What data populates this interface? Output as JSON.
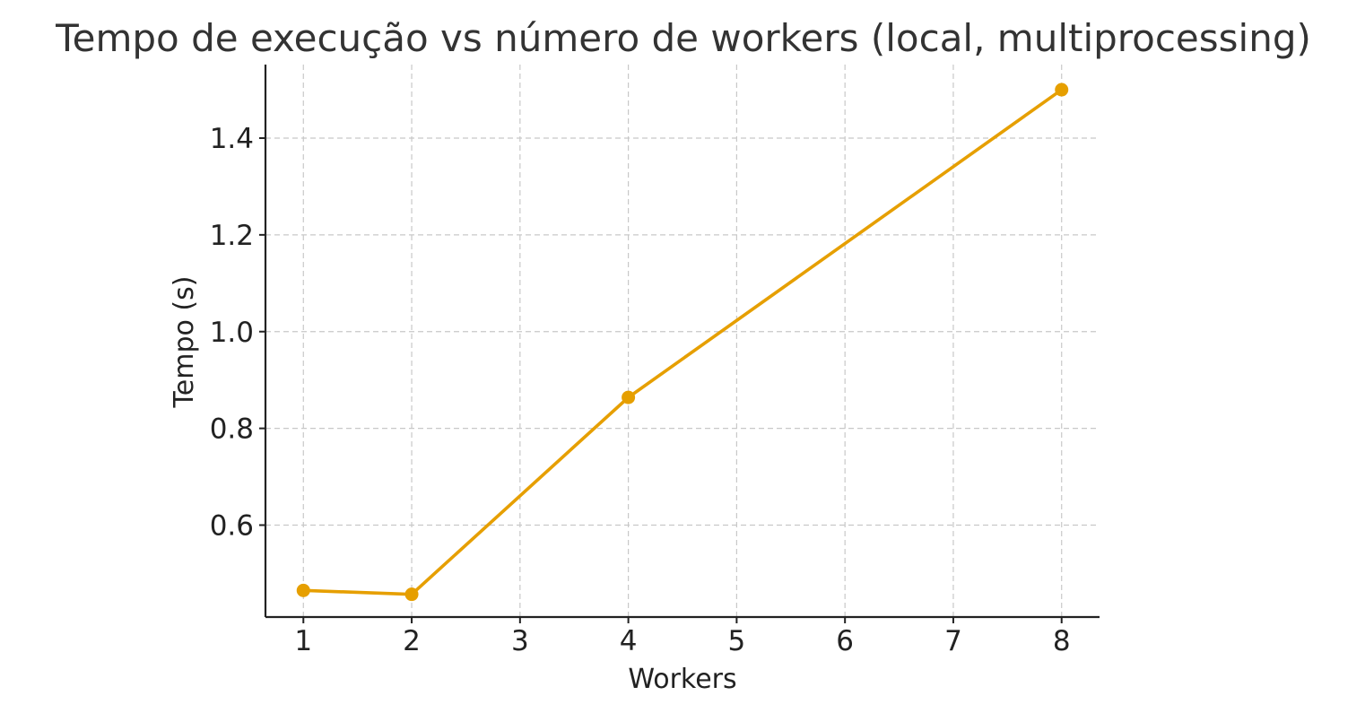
{
  "chart_data": {
    "type": "line",
    "title": "Tempo de execução vs número de workers (local, multiprocessing)",
    "xlabel": "Workers",
    "ylabel": "Tempo (s)",
    "x": [
      1,
      2,
      4,
      8
    ],
    "series": [
      {
        "values": [
          0.465,
          0.457,
          0.864,
          1.5
        ],
        "color": "#E69F00"
      }
    ],
    "xlim": [
      0.65,
      8.35
    ],
    "ylim": [
      0.41,
      1.552
    ],
    "xticks": [
      1,
      2,
      3,
      4,
      5,
      6,
      7,
      8
    ],
    "xtick_labels": [
      "1",
      "2",
      "3",
      "4",
      "5",
      "6",
      "7",
      "8"
    ],
    "yticks": [
      0.6,
      0.8,
      1.0,
      1.2,
      1.4
    ],
    "ytick_labels": [
      "0.6",
      "0.8",
      "1.0",
      "1.2",
      "1.4"
    ],
    "grid": true,
    "marker": "circle",
    "spines": [
      "left",
      "bottom"
    ]
  }
}
